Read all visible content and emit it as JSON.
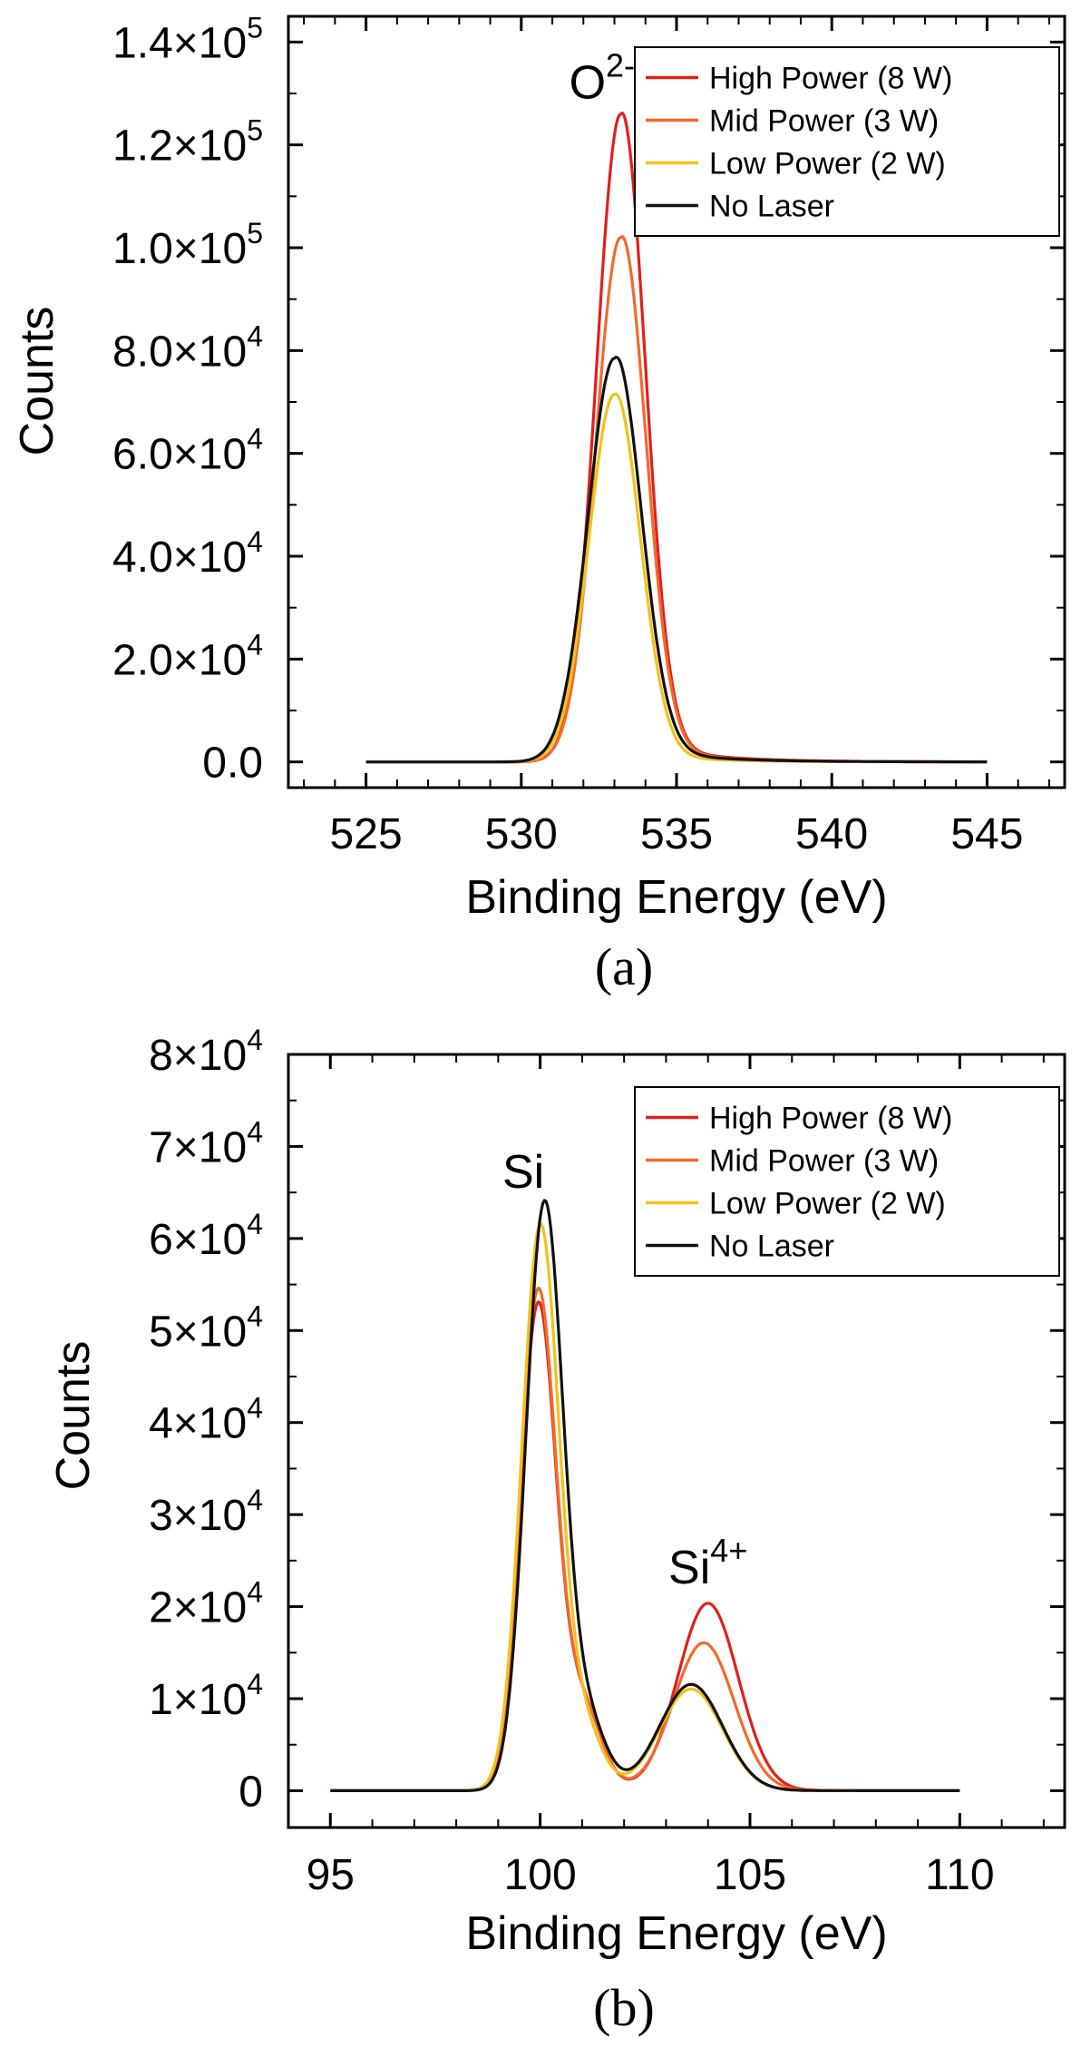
{
  "figure": {
    "panels": [
      "(a)",
      "(b)"
    ]
  },
  "chart_data": [
    {
      "type": "line",
      "panel_label": "(a)",
      "title": "",
      "xlabel": "Binding Energy (eV)",
      "ylabel": "Counts",
      "xlim": [
        522.5,
        547.5
      ],
      "ylim": [
        -5000,
        145000
      ],
      "xticks": [
        525,
        530,
        535,
        540,
        545
      ],
      "xtick_labels": [
        "525",
        "530",
        "535",
        "540",
        "545"
      ],
      "yticks": [
        0,
        20000,
        40000,
        60000,
        80000,
        100000,
        120000,
        140000
      ],
      "ytick_labels": [
        {
          "mant": "0.0",
          "exp": ""
        },
        {
          "mant": "2.0×10",
          "exp": "4"
        },
        {
          "mant": "4.0×10",
          "exp": "4"
        },
        {
          "mant": "6.0×10",
          "exp": "4"
        },
        {
          "mant": "8.0×10",
          "exp": "4"
        },
        {
          "mant": "1.0×10",
          "exp": "5"
        },
        {
          "mant": "1.2×10",
          "exp": "5"
        },
        {
          "mant": "1.4×10",
          "exp": "5"
        }
      ],
      "annotations": [
        {
          "base": "O",
          "sup": "2-",
          "x": 532.6,
          "y": 129000
        }
      ],
      "legend_position": "top-right",
      "series": [
        {
          "name": "High Power (8 W)",
          "color": "#e0201b",
          "peaks": [
            {
              "center": 533.2,
              "amp": 126000,
              "sigma": 0.78
            }
          ],
          "tail": 0.04
        },
        {
          "name": "Mid Power (3 W)",
          "color": "#f26a2a",
          "peaks": [
            {
              "center": 533.2,
              "amp": 102000,
              "sigma": 0.8
            }
          ],
          "tail": 0.04
        },
        {
          "name": "Low Power (2 W)",
          "color": "#f3c21a",
          "peaks": [
            {
              "center": 533.0,
              "amp": 71500,
              "sigma": 0.82
            }
          ],
          "tail": 0.03
        },
        {
          "name": "No Laser",
          "color": "#111111",
          "peaks": [
            {
              "center": 533.0,
              "amp": 78500,
              "sigma": 0.85
            }
          ],
          "tail": 0.05
        }
      ],
      "x_range": [
        525,
        545
      ]
    },
    {
      "type": "line",
      "panel_label": "(b)",
      "title": "",
      "xlabel": "Binding Energy (eV)",
      "ylabel": "Counts",
      "xlim": [
        94,
        112.5
      ],
      "ylim": [
        -4000,
        80000
      ],
      "xticks": [
        95,
        100,
        105,
        110
      ],
      "xtick_labels": [
        "95",
        "100",
        "105",
        "110"
      ],
      "yticks": [
        0,
        10000,
        20000,
        30000,
        40000,
        50000,
        60000,
        70000,
        80000
      ],
      "ytick_labels": [
        {
          "mant": "0",
          "exp": ""
        },
        {
          "mant": "1×10",
          "exp": "4"
        },
        {
          "mant": "2×10",
          "exp": "4"
        },
        {
          "mant": "3×10",
          "exp": "4"
        },
        {
          "mant": "4×10",
          "exp": "4"
        },
        {
          "mant": "5×10",
          "exp": "4"
        },
        {
          "mant": "6×10",
          "exp": "4"
        },
        {
          "mant": "7×10",
          "exp": "4"
        },
        {
          "mant": "8×10",
          "exp": "4"
        }
      ],
      "annotations": [
        {
          "base": "Si",
          "sup": "",
          "x": 99.6,
          "y": 65500
        },
        {
          "base": "Si",
          "sup": "4+",
          "x": 104.0,
          "y": 22500
        }
      ],
      "legend_position": "top-right",
      "series": [
        {
          "name": "High Power (8 W)",
          "color": "#e0201b",
          "peaks": [
            {
              "center": 99.95,
              "amp": 52500,
              "sigma": 0.42
            },
            {
              "center": 101.0,
              "amp": 9000,
              "sigma": 0.45
            },
            {
              "center": 104.0,
              "amp": 20300,
              "sigma": 0.72
            }
          ],
          "tail": 0.01
        },
        {
          "name": "Mid Power (3 W)",
          "color": "#f26a2a",
          "peaks": [
            {
              "center": 99.95,
              "amp": 54000,
              "sigma": 0.42
            },
            {
              "center": 101.0,
              "amp": 9000,
              "sigma": 0.45
            },
            {
              "center": 103.9,
              "amp": 16000,
              "sigma": 0.72
            }
          ],
          "tail": 0.01
        },
        {
          "name": "Low Power (2 W)",
          "color": "#f3c21a",
          "peaks": [
            {
              "center": 100.0,
              "amp": 61000,
              "sigma": 0.44
            },
            {
              "center": 101.0,
              "amp": 7000,
              "sigma": 0.45
            },
            {
              "center": 103.6,
              "amp": 11000,
              "sigma": 0.75
            }
          ],
          "tail": 0.005
        },
        {
          "name": "No Laser",
          "color": "#111111",
          "peaks": [
            {
              "center": 100.1,
              "amp": 63500,
              "sigma": 0.44
            },
            {
              "center": 101.1,
              "amp": 7500,
              "sigma": 0.45
            },
            {
              "center": 103.6,
              "amp": 11500,
              "sigma": 0.75
            }
          ],
          "tail": 0.005
        }
      ],
      "x_range": [
        95,
        110
      ]
    }
  ]
}
